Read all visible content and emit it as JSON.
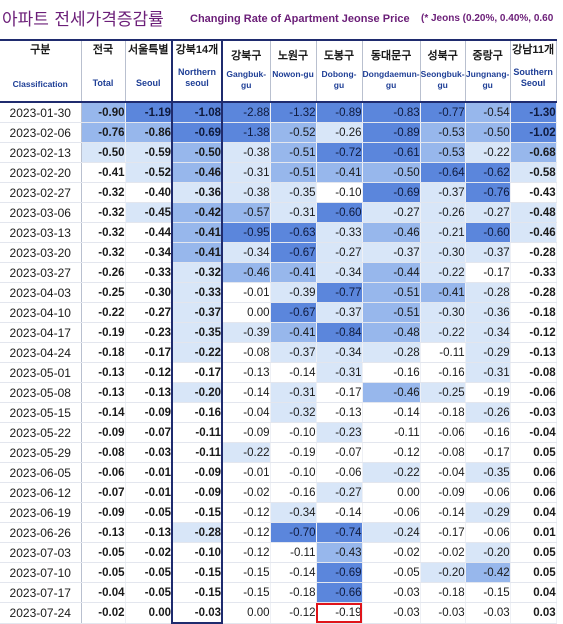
{
  "header": {
    "title_ko": "아파트 전세가격증감률",
    "title_en": "Changing Rate of Apartment Jeonse Price",
    "note": "(* Jeons (0.20%, 0.40%, 0.60"
  },
  "colors": {
    "level_4": "#2f5bc8",
    "level_3": "#5b86dc",
    "level_2": "#97b7ec",
    "level_1": "#d8e6f8",
    "level_0": "#ffffff",
    "header_border": "#1f2b6e",
    "highlight": "#e0141a"
  },
  "chart_data": {
    "type": "table",
    "columns": [
      {
        "key": "date",
        "ko": "구분",
        "en": "Classification"
      },
      {
        "key": "nat",
        "ko": "전국",
        "en": "Total"
      },
      {
        "key": "seoul",
        "ko": "서울특별",
        "en": "Seoul"
      },
      {
        "key": "north",
        "ko": "강북14개",
        "en": "Northern seoul"
      },
      {
        "key": "gangbuk",
        "ko": "강북구",
        "en": "Gangbuk-gu"
      },
      {
        "key": "nowon",
        "ko": "노원구",
        "en": "Nowon-gu"
      },
      {
        "key": "dobong",
        "ko": "도봉구",
        "en": "Dobong-gu"
      },
      {
        "key": "ddm",
        "ko": "동대문구",
        "en": "Dongdaemun-gu"
      },
      {
        "key": "sb",
        "ko": "성북구",
        "en": "Seongbuk-gu"
      },
      {
        "key": "jn",
        "ko": "중랑구",
        "en": "Jungnang-gu"
      },
      {
        "key": "south",
        "ko": "강남11개",
        "en": "Southern Seoul"
      }
    ],
    "rows": [
      {
        "date": "2023-01-30",
        "v": [
          "-0.90",
          "-1.19",
          "-1.08",
          "-2.88",
          "-1.32",
          "-0.89",
          "-0.83",
          "-0.77",
          "-0.54",
          "-1.30"
        ]
      },
      {
        "date": "2023-02-06",
        "v": [
          "-0.76",
          "-0.86",
          "-0.69",
          "-1.38",
          "-0.52",
          "-0.26",
          "-0.89",
          "-0.53",
          "-0.50",
          "-1.02"
        ]
      },
      {
        "date": "2023-02-13",
        "v": [
          "-0.50",
          "-0.59",
          "-0.50",
          "-0.38",
          "-0.51",
          "-0.72",
          "-0.61",
          "-0.53",
          "-0.22",
          "-0.68"
        ]
      },
      {
        "date": "2023-02-20",
        "v": [
          "-0.41",
          "-0.52",
          "-0.46",
          "-0.31",
          "-0.51",
          "-0.41",
          "-0.50",
          "-0.64",
          "-0.62",
          "-0.58"
        ]
      },
      {
        "date": "2023-02-27",
        "v": [
          "-0.32",
          "-0.40",
          "-0.36",
          "-0.38",
          "-0.35",
          "-0.10",
          "-0.69",
          "-0.37",
          "-0.76",
          "-0.43"
        ]
      },
      {
        "date": "2023-03-06",
        "v": [
          "-0.32",
          "-0.45",
          "-0.42",
          "-0.57",
          "-0.31",
          "-0.60",
          "-0.27",
          "-0.26",
          "-0.27",
          "-0.48"
        ]
      },
      {
        "date": "2023-03-13",
        "v": [
          "-0.32",
          "-0.44",
          "-0.41",
          "-0.95",
          "-0.63",
          "-0.33",
          "-0.46",
          "-0.21",
          "-0.60",
          "-0.46"
        ]
      },
      {
        "date": "2023-03-20",
        "v": [
          "-0.32",
          "-0.34",
          "-0.41",
          "-0.34",
          "-0.67",
          "-0.27",
          "-0.37",
          "-0.30",
          "-0.37",
          "-0.28"
        ]
      },
      {
        "date": "2023-03-27",
        "v": [
          "-0.26",
          "-0.33",
          "-0.32",
          "-0.46",
          "-0.41",
          "-0.34",
          "-0.44",
          "-0.22",
          "-0.17",
          "-0.33"
        ]
      },
      {
        "date": "2023-04-03",
        "v": [
          "-0.25",
          "-0.30",
          "-0.33",
          "-0.01",
          "-0.39",
          "-0.77",
          "-0.51",
          "-0.41",
          "-0.28",
          "-0.28"
        ]
      },
      {
        "date": "2023-04-10",
        "v": [
          "-0.22",
          "-0.27",
          "-0.37",
          "0.00",
          "-0.67",
          "-0.37",
          "-0.51",
          "-0.30",
          "-0.36",
          "-0.18"
        ]
      },
      {
        "date": "2023-04-17",
        "v": [
          "-0.19",
          "-0.23",
          "-0.35",
          "-0.39",
          "-0.41",
          "-0.84",
          "-0.48",
          "-0.22",
          "-0.34",
          "-0.12"
        ]
      },
      {
        "date": "2023-04-24",
        "v": [
          "-0.18",
          "-0.17",
          "-0.22",
          "-0.08",
          "-0.37",
          "-0.34",
          "-0.28",
          "-0.11",
          "-0.29",
          "-0.13"
        ]
      },
      {
        "date": "2023-05-01",
        "v": [
          "-0.13",
          "-0.12",
          "-0.17",
          "-0.13",
          "-0.14",
          "-0.31",
          "-0.16",
          "-0.16",
          "-0.31",
          "-0.08"
        ]
      },
      {
        "date": "2023-05-08",
        "v": [
          "-0.13",
          "-0.13",
          "-0.20",
          "-0.14",
          "-0.31",
          "-0.17",
          "-0.46",
          "-0.25",
          "-0.19",
          "-0.06"
        ]
      },
      {
        "date": "2023-05-15",
        "v": [
          "-0.14",
          "-0.09",
          "-0.16",
          "-0.04",
          "-0.32",
          "-0.13",
          "-0.14",
          "-0.18",
          "-0.26",
          "-0.03"
        ]
      },
      {
        "date": "2023-05-22",
        "v": [
          "-0.09",
          "-0.07",
          "-0.11",
          "-0.09",
          "-0.10",
          "-0.23",
          "-0.11",
          "-0.06",
          "-0.16",
          "-0.04"
        ]
      },
      {
        "date": "2023-05-29",
        "v": [
          "-0.08",
          "-0.03",
          "-0.11",
          "-0.22",
          "-0.19",
          "-0.07",
          "-0.12",
          "-0.08",
          "-0.17",
          "0.05"
        ]
      },
      {
        "date": "2023-06-05",
        "v": [
          "-0.06",
          "-0.01",
          "-0.09",
          "-0.01",
          "-0.10",
          "-0.06",
          "-0.22",
          "-0.04",
          "-0.35",
          "0.06"
        ]
      },
      {
        "date": "2023-06-12",
        "v": [
          "-0.07",
          "-0.01",
          "-0.09",
          "-0.02",
          "-0.16",
          "-0.27",
          "0.00",
          "-0.09",
          "-0.06",
          "0.06"
        ]
      },
      {
        "date": "2023-06-19",
        "v": [
          "-0.09",
          "-0.05",
          "-0.15",
          "-0.12",
          "-0.34",
          "-0.14",
          "-0.06",
          "-0.14",
          "-0.29",
          "0.04"
        ]
      },
      {
        "date": "2023-06-26",
        "v": [
          "-0.13",
          "-0.13",
          "-0.28",
          "-0.12",
          "-0.70",
          "-0.74",
          "-0.24",
          "-0.17",
          "-0.06",
          "0.01"
        ]
      },
      {
        "date": "2023-07-03",
        "v": [
          "-0.05",
          "-0.02",
          "-0.10",
          "-0.12",
          "-0.11",
          "-0.43",
          "-0.02",
          "-0.02",
          "-0.20",
          "0.05"
        ]
      },
      {
        "date": "2023-07-10",
        "v": [
          "-0.05",
          "-0.05",
          "-0.15",
          "-0.15",
          "-0.14",
          "-0.69",
          "-0.05",
          "-0.20",
          "-0.42",
          "0.05"
        ]
      },
      {
        "date": "2023-07-17",
        "v": [
          "-0.04",
          "-0.05",
          "-0.15",
          "-0.15",
          "-0.18",
          "-0.66",
          "-0.03",
          "-0.18",
          "-0.15",
          "0.04"
        ]
      },
      {
        "date": "2023-07-24",
        "v": [
          "-0.02",
          "0.00",
          "-0.03",
          "0.00",
          "-0.12",
          "-0.19",
          "-0.03",
          "-0.03",
          "-0.03",
          "0.03"
        ]
      }
    ],
    "highlighted_cell": {
      "date": "2023-07-24",
      "column": "dobong"
    }
  }
}
